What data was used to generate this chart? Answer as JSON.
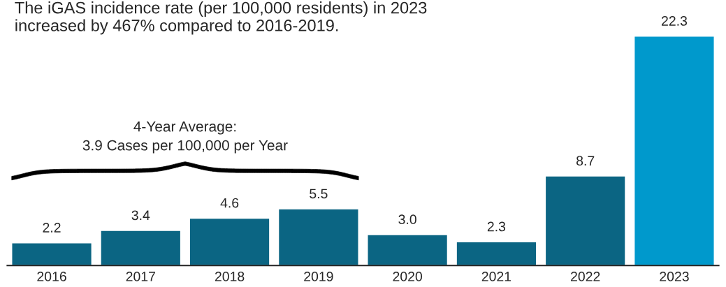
{
  "chart_data": {
    "type": "bar",
    "title": "The iGAS incidence rate (per 100,000 residents) in 2023\nincreased by 467% compared to 2016-2019.",
    "categories": [
      "2016",
      "2017",
      "2018",
      "2019",
      "2020",
      "2021",
      "2022",
      "2023"
    ],
    "values": [
      2.2,
      3.4,
      4.6,
      5.5,
      3.0,
      2.3,
      8.7,
      22.3
    ],
    "colors": [
      "#0b6583",
      "#0b6583",
      "#0b6583",
      "#0b6583",
      "#0b6583",
      "#0b6583",
      "#0b6583",
      "#0099cc"
    ],
    "value_labels": [
      "2.2",
      "3.4",
      "4.6",
      "5.5",
      "3.0",
      "2.3",
      "8.7",
      "22.3"
    ],
    "annotations": [
      "4-Year Average:\n3.9 Cases per 100,000 per Year"
    ]
  }
}
